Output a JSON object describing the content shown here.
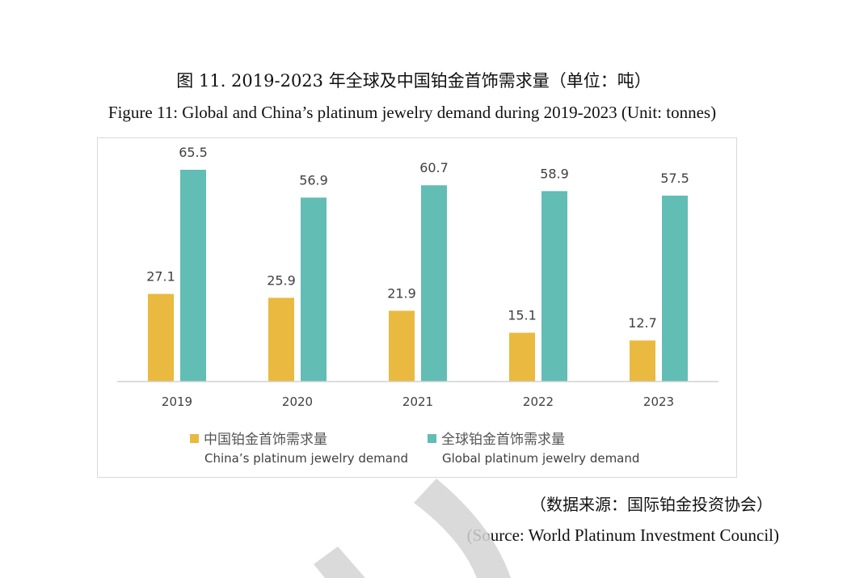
{
  "figure": {
    "title_zh": "图 11. 2019-2023 年全球及中国铂金首饰需求量（单位：吨）",
    "title_en": "Figure 11: Global and China’s platinum jewelry demand during 2019-2023 (Unit: tonnes)"
  },
  "chart_data": {
    "type": "bar",
    "categories": [
      "2019",
      "2020",
      "2021",
      "2022",
      "2023"
    ],
    "series": [
      {
        "name": "中国铂金首饰需求量 China’s platinum jewelry demand",
        "color": "#e9ba3f",
        "values": [
          27.1,
          25.9,
          21.9,
          15.1,
          12.7
        ]
      },
      {
        "name": "全球铂金首饰需求量 Global platinum jewelry demand",
        "color": "#62bdb4",
        "values": [
          65.5,
          56.9,
          60.7,
          58.9,
          57.5
        ]
      }
    ],
    "ylim": [
      0,
      70
    ],
    "grid": false,
    "legend_position": "bottom"
  },
  "legend": {
    "china_zh": "中国铂金首饰需求量",
    "china_en": "China’s platinum jewelry demand",
    "global_zh": "全球铂金首饰需求量",
    "global_en": "Global platinum jewelry demand"
  },
  "source": {
    "zh": "（数据来源：国际铂金投资协会）",
    "en": "(Source: World Platinum Investment Council)"
  },
  "colors": {
    "china": "#e9ba3f",
    "global": "#62bdb4",
    "watermark": "#d3d3d3"
  }
}
